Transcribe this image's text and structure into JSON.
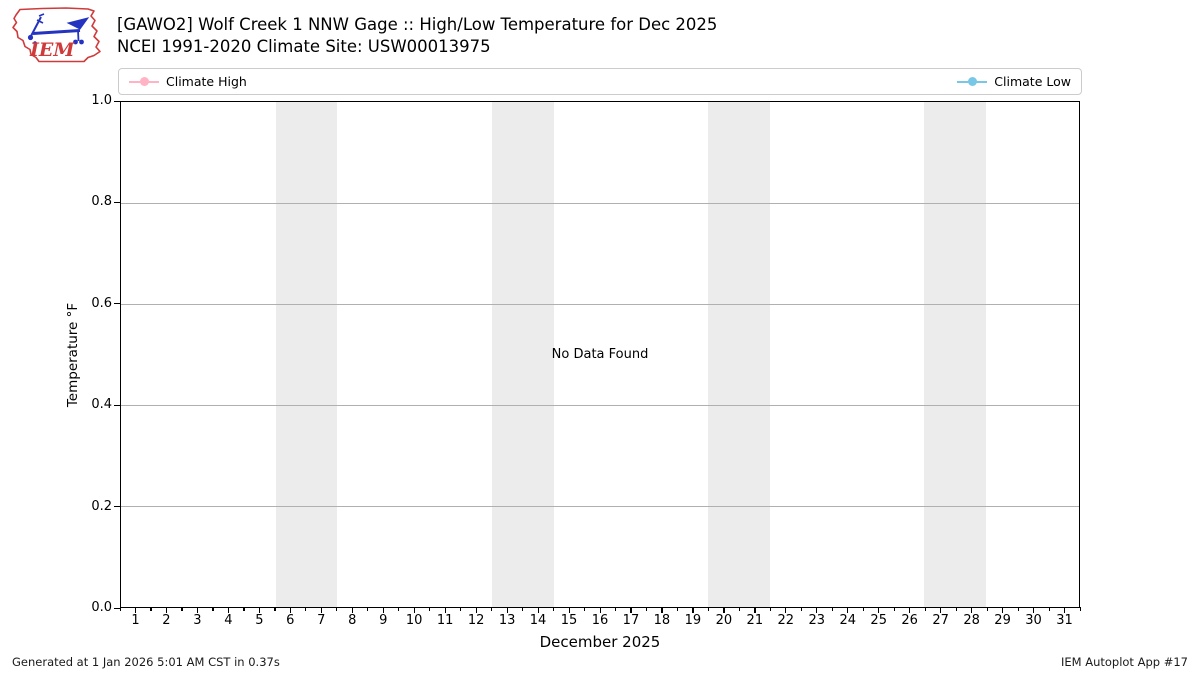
{
  "header": {
    "title_line1": "[GAWO2] Wolf Creek 1 NNW Gage :: High/Low Temperature for Dec 2025",
    "title_line2": "NCEI 1991-2020 Climate Site: USW00013975",
    "logo_text": "IEM"
  },
  "legend": {
    "items": [
      {
        "label": "Climate High",
        "color": "#ffb3c4"
      },
      {
        "label": "Climate Low",
        "color": "#79c7e7"
      }
    ]
  },
  "chart_data": {
    "type": "line",
    "title": "[GAWO2] Wolf Creek 1 NNW Gage :: High/Low Temperature for Dec 2025",
    "subtitle": "NCEI 1991-2020 Climate Site: USW00013975",
    "xlabel": "December 2025",
    "ylabel": "Temperature °F",
    "x": [
      1,
      2,
      3,
      4,
      5,
      6,
      7,
      8,
      9,
      10,
      11,
      12,
      13,
      14,
      15,
      16,
      17,
      18,
      19,
      20,
      21,
      22,
      23,
      24,
      25,
      26,
      27,
      28,
      29,
      30,
      31
    ],
    "xlim": [
      0.5,
      31.5
    ],
    "ylim": [
      0.0,
      1.0
    ],
    "ytick_values": [
      1.0,
      0.8,
      0.6,
      0.4,
      0.2,
      0.0
    ],
    "ytick_labels": [
      "1.0",
      "0.8",
      "0.6",
      "0.4",
      "0.2",
      "0.0"
    ],
    "grid_values": [
      0.8,
      0.6,
      0.4,
      0.2
    ],
    "grid": "horizontal",
    "legend_position": "top",
    "series": [
      {
        "name": "Climate High",
        "color": "#ffb3c4",
        "values": []
      },
      {
        "name": "Climate Low",
        "color": "#79c7e7",
        "values": []
      }
    ],
    "annotations": [
      "No Data Found"
    ],
    "weekend_bands_days": [
      [
        5.5,
        7.5
      ],
      [
        12.5,
        14.5
      ],
      [
        19.5,
        21.5
      ],
      [
        26.5,
        28.5
      ]
    ]
  },
  "plot": {
    "no_data_text": "No Data Found"
  },
  "footer": {
    "generated": "Generated at 1 Jan 2026 5:01 AM CST in 0.37s",
    "app": "IEM Autoplot App #17"
  },
  "colors": {
    "band": "#ececec",
    "grid": "#b0b0b0",
    "climate_high": "#ffb3c4",
    "climate_low": "#79c7e7",
    "logo_red": "#cf3b3b",
    "logo_blue": "#2433c0"
  }
}
